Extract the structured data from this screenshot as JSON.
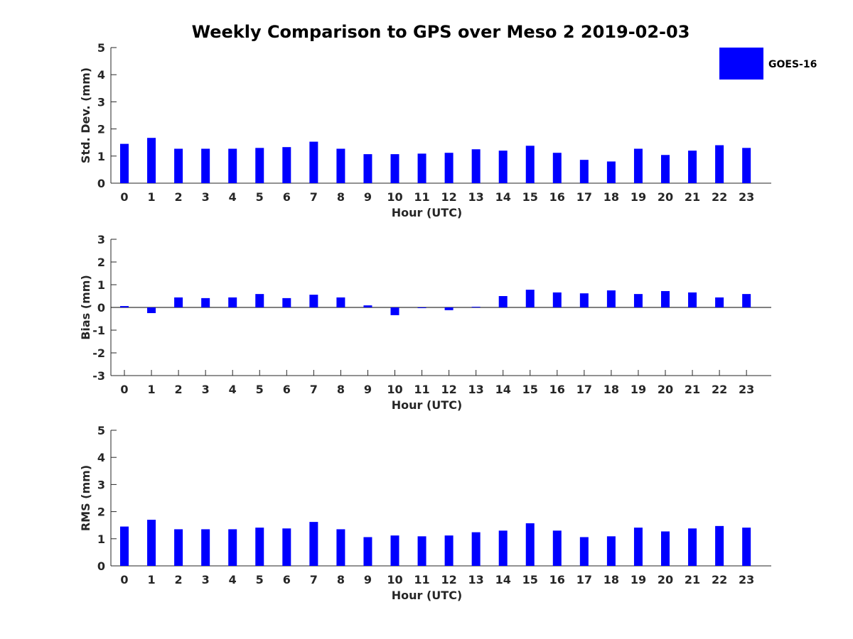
{
  "chart_data": {
    "type": "bar",
    "title": "Weekly Comparison to GPS over Meso 2 2019-02-03",
    "legend": {
      "label": "GOES-16",
      "color": "#0000ff",
      "placement": "top-right"
    },
    "categories": [
      "0",
      "1",
      "2",
      "3",
      "4",
      "5",
      "6",
      "7",
      "8",
      "9",
      "10",
      "11",
      "12",
      "13",
      "14",
      "15",
      "16",
      "17",
      "18",
      "19",
      "20",
      "21",
      "22",
      "23"
    ],
    "panels": [
      {
        "ylabel": "Std. Dev. (mm)",
        "xlabel": "Hour (UTC)",
        "ylim": [
          0,
          5
        ],
        "yticks": [
          "0",
          "1",
          "2",
          "3",
          "4",
          "5"
        ],
        "values": [
          1.45,
          1.67,
          1.27,
          1.27,
          1.27,
          1.3,
          1.33,
          1.53,
          1.27,
          1.07,
          1.07,
          1.09,
          1.12,
          1.25,
          1.2,
          1.38,
          1.12,
          0.86,
          0.8,
          1.27,
          1.04,
          1.2,
          1.4,
          1.3
        ]
      },
      {
        "ylabel": "Bias (mm)",
        "xlabel": "Hour (UTC)",
        "ylim": [
          -3,
          3
        ],
        "yticks": [
          "-3",
          "-2",
          "-1",
          "0",
          "1",
          "2",
          "3"
        ],
        "values": [
          0.06,
          -0.25,
          0.44,
          0.41,
          0.44,
          0.59,
          0.41,
          0.56,
          0.44,
          0.09,
          -0.34,
          -0.03,
          -0.12,
          0.03,
          0.5,
          0.78,
          0.66,
          0.62,
          0.75,
          0.59,
          0.72,
          0.66,
          0.44,
          0.59
        ]
      },
      {
        "ylabel": "RMS (mm)",
        "xlabel": "Hour (UTC)",
        "ylim": [
          0,
          5
        ],
        "yticks": [
          "0",
          "1",
          "2",
          "3",
          "4",
          "5"
        ],
        "values": [
          1.45,
          1.7,
          1.35,
          1.35,
          1.35,
          1.41,
          1.38,
          1.62,
          1.35,
          1.06,
          1.12,
          1.09,
          1.12,
          1.24,
          1.3,
          1.57,
          1.3,
          1.06,
          1.09,
          1.41,
          1.27,
          1.38,
          1.47,
          1.41
        ]
      }
    ]
  }
}
